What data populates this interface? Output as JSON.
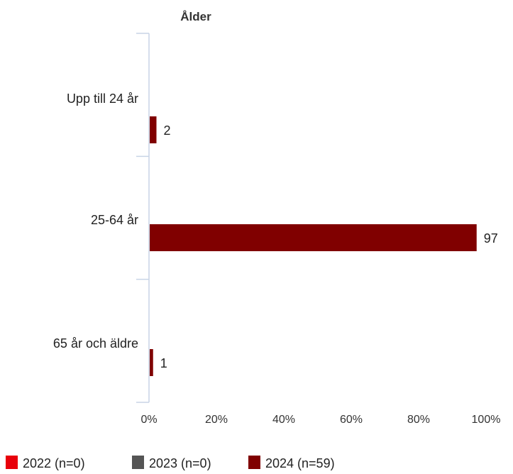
{
  "chart_data": {
    "type": "bar",
    "orientation": "horizontal",
    "title": "Ålder",
    "categories": [
      "Upp till 24 år",
      "25-64 år",
      "65 år och äldre"
    ],
    "series": [
      {
        "name": "2022 (n=0)",
        "color": "#e8000b",
        "values": [
          0,
          0,
          0
        ],
        "data_labels": [
          "",
          "",
          ""
        ]
      },
      {
        "name": "2023 (n=0)",
        "color": "#555555",
        "values": [
          0,
          0,
          0
        ],
        "data_labels": [
          "",
          "",
          ""
        ]
      },
      {
        "name": "2024 (n=59)",
        "color": "#800000",
        "values": [
          2,
          97,
          1
        ],
        "data_labels": [
          "2",
          "97",
          "1"
        ]
      }
    ],
    "xlim": [
      0,
      100
    ],
    "x_ticks": [
      0,
      20,
      40,
      60,
      80,
      100
    ],
    "x_tick_labels": [
      "0%",
      "20%",
      "40%",
      "60%",
      "80%",
      "100%"
    ],
    "xlabel": "",
    "ylabel": "",
    "grid": false,
    "legend_position": "bottom-left",
    "axis_color": "#c8d4e6"
  }
}
